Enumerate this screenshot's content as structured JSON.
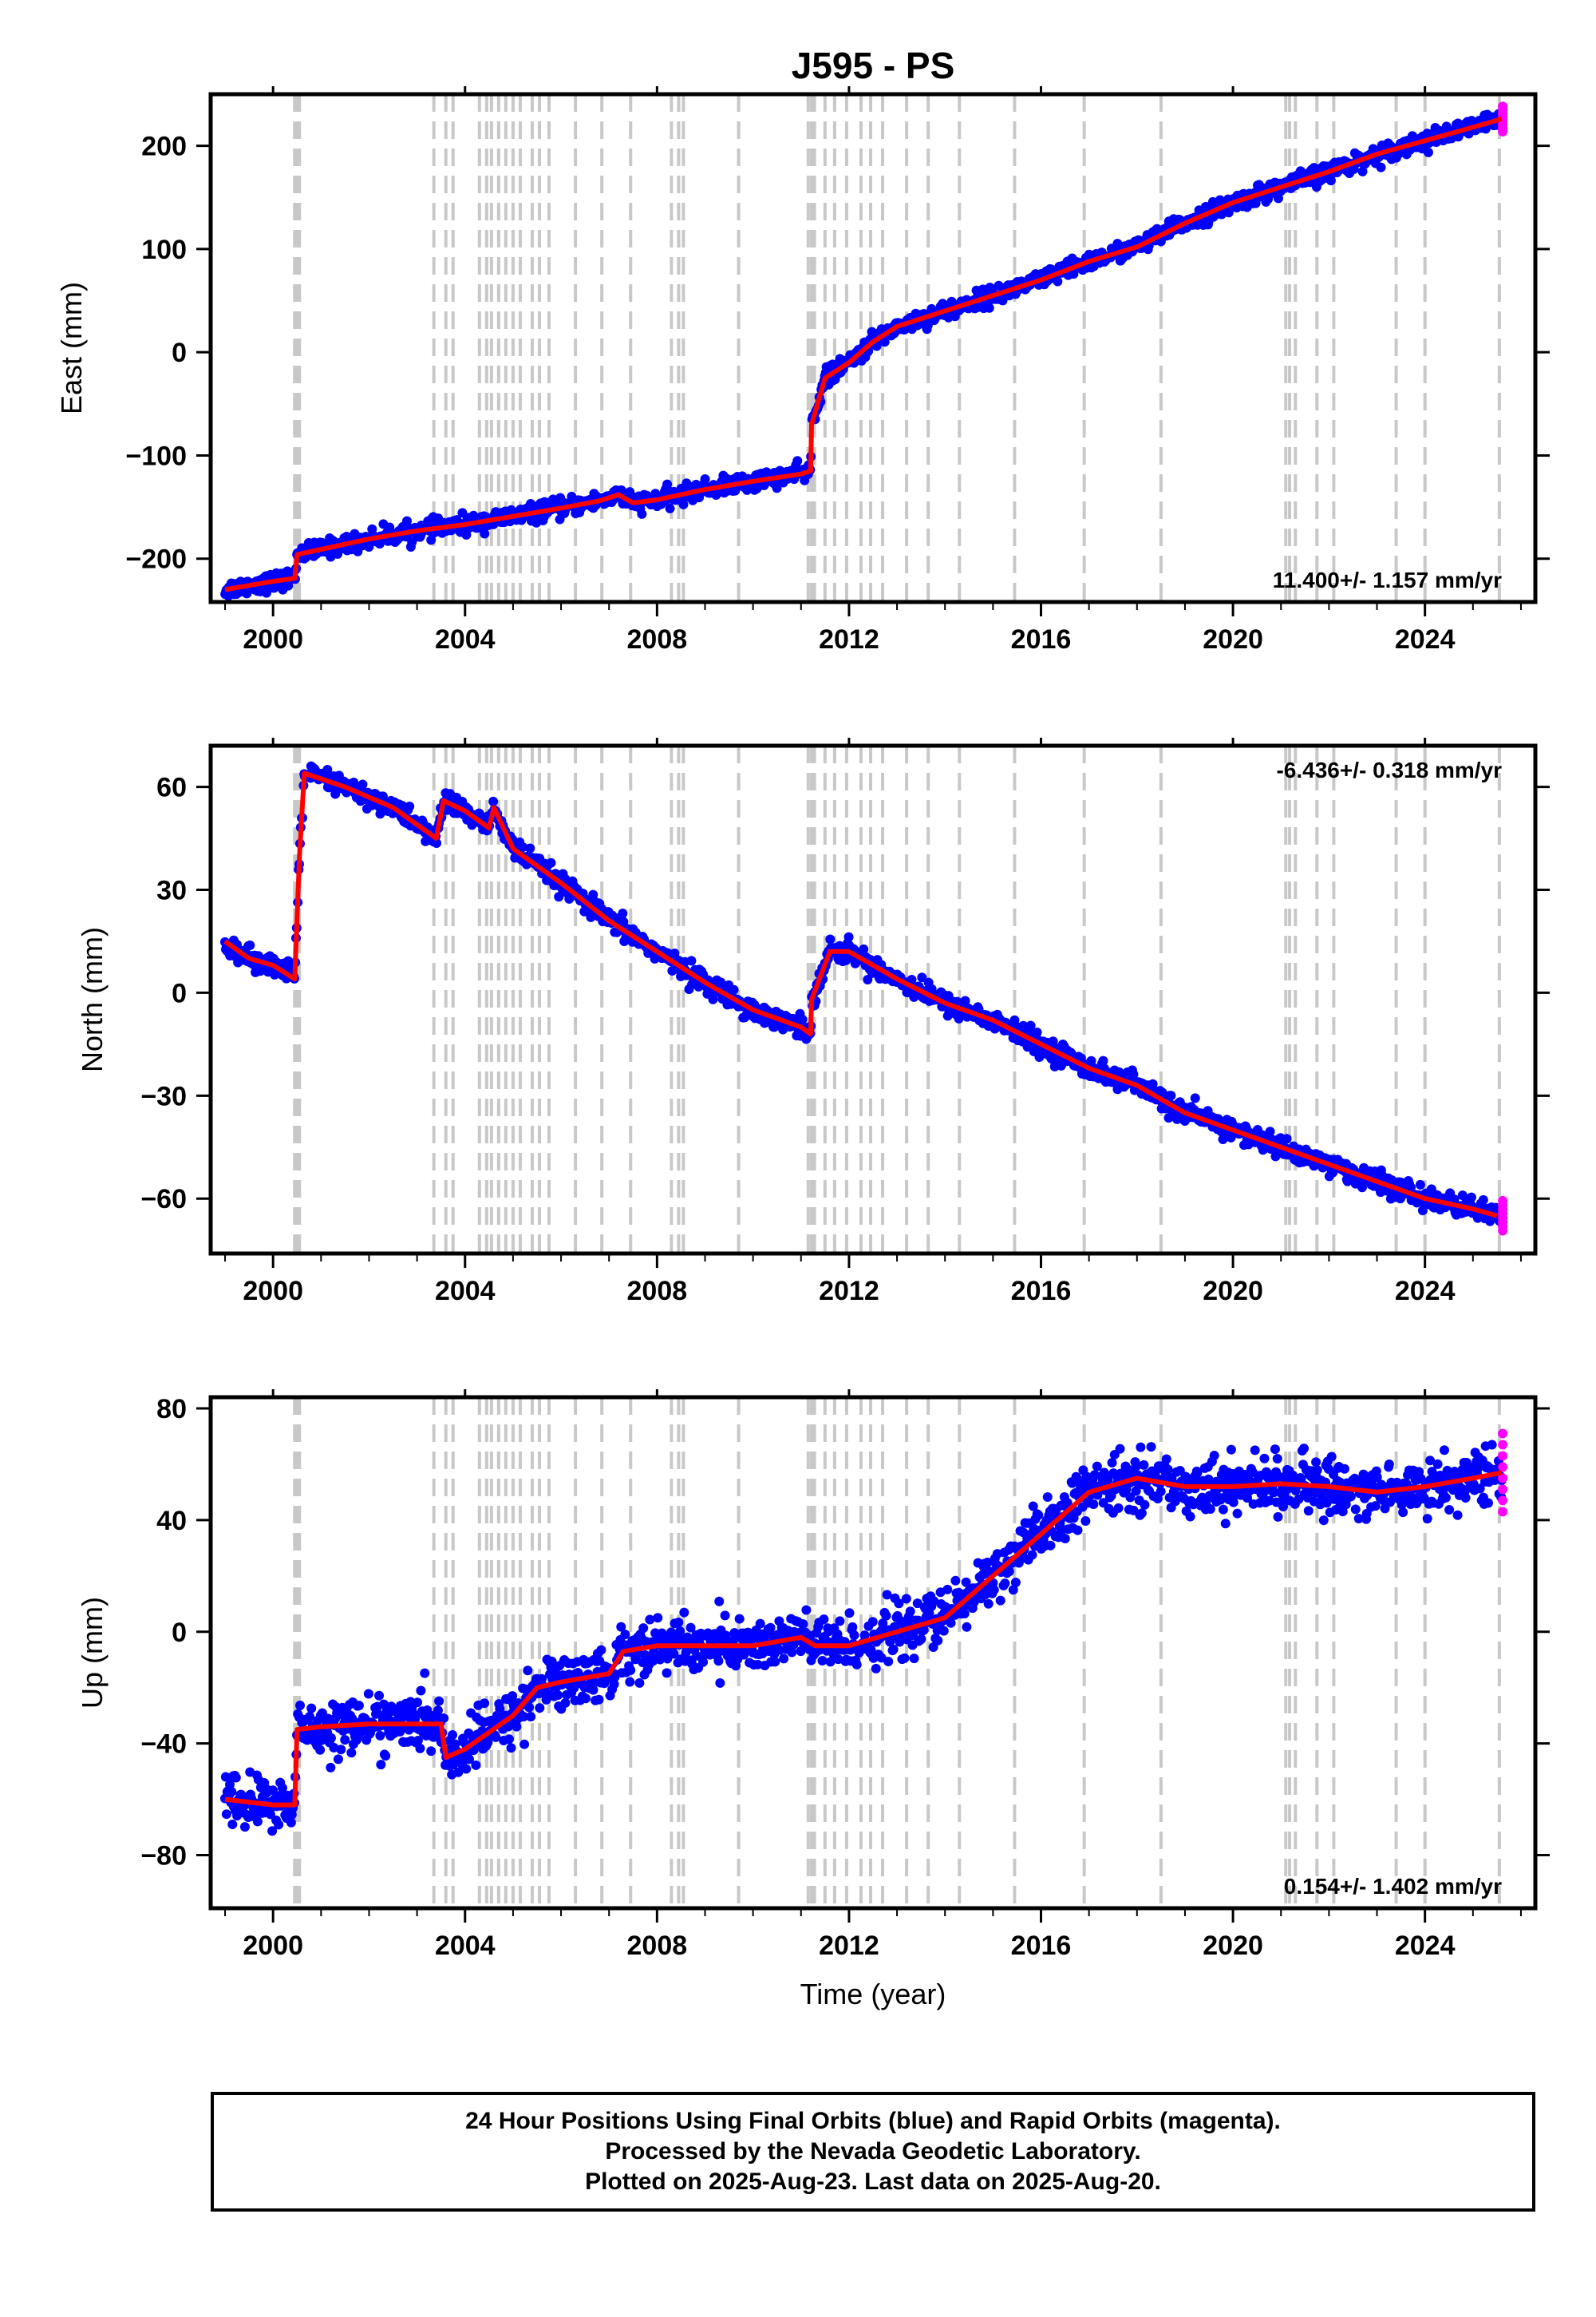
{
  "title": "J595 - PS",
  "xlabel": "Time (year)",
  "footer": {
    "line1": "24 Hour Positions Using Final Orbits (blue) and Rapid Orbits (magenta).",
    "line2": "Processed by the Nevada Geodetic Laboratory.",
    "line3": "Plotted on 2025-Aug-23. Last data on 2025-Aug-20."
  },
  "colors": {
    "final": "#0000ff",
    "rapid": "#ff00ff",
    "model": "#ff0000",
    "event_lines": "#c8c8c8",
    "frame": "#000000"
  },
  "chart_data": [
    {
      "type": "scatter",
      "component": "east",
      "ylabel": "East (mm)",
      "xlim": [
        1998.7,
        2026.3
      ],
      "ylim": [
        -242,
        250
      ],
      "yticks": [
        -200,
        -100,
        0,
        100,
        200
      ],
      "xticks": [
        2000,
        2004,
        2008,
        2012,
        2016,
        2020,
        2024
      ],
      "rate": "11.400+/- 1.157 mm/yr",
      "rate_position": "bottom-right",
      "series": [
        {
          "role": "model",
          "x": [
            1999.0,
            1999.5,
            2000.0,
            2000.45,
            2000.5,
            2001.0,
            2002.0,
            2003.0,
            2004.0,
            2005.0,
            2006.0,
            2006.8,
            2007.2,
            2007.5,
            2008.0,
            2009.0,
            2010.0,
            2011.0,
            2011.2,
            2011.22,
            2011.5,
            2012.0,
            2012.5,
            2013.0,
            2014.0,
            2015.0,
            2016.0,
            2017.0,
            2018.0,
            2019.0,
            2020.0,
            2021.0,
            2022.0,
            2023.0,
            2024.0,
            2025.0,
            2025.6
          ],
          "y": [
            -230,
            -226,
            -222,
            -219,
            -196,
            -191,
            -181,
            -173,
            -167,
            -159,
            -151,
            -144,
            -138,
            -146,
            -143,
            -133,
            -125,
            -118,
            -115,
            -70,
            -25,
            -10,
            10,
            25,
            40,
            55,
            70,
            88,
            102,
            125,
            145,
            160,
            175,
            192,
            205,
            218,
            226
          ]
        }
      ],
      "noise_mm": 7
    },
    {
      "type": "scatter",
      "component": "north",
      "ylabel": "North (mm)",
      "xlim": [
        1998.7,
        2026.3
      ],
      "ylim": [
        -76,
        72
      ],
      "yticks": [
        -60,
        -30,
        0,
        30,
        60
      ],
      "xticks": [
        2000,
        2004,
        2008,
        2012,
        2016,
        2020,
        2024
      ],
      "rate": "-6.436+/- 0.318 mm/yr",
      "rate_position": "top-right",
      "series": [
        {
          "role": "model",
          "x": [
            1999.0,
            1999.5,
            2000.0,
            2000.45,
            2000.55,
            2000.65,
            2001.5,
            2002.5,
            2003.3,
            2003.4,
            2003.55,
            2004.0,
            2004.5,
            2004.6,
            2005.0,
            2006.0,
            2007.0,
            2008.0,
            2009.0,
            2010.0,
            2011.0,
            2011.2,
            2011.22,
            2011.6,
            2012.0,
            2013.0,
            2014.0,
            2015.0,
            2016.0,
            2017.0,
            2018.0,
            2019.0,
            2020.0,
            2021.0,
            2022.0,
            2023.0,
            2024.0,
            2025.0,
            2025.5
          ],
          "y": [
            15,
            10,
            8,
            4,
            40,
            64,
            60,
            54,
            46,
            45,
            56,
            53,
            48,
            54,
            42,
            32,
            21,
            12,
            3,
            -5,
            -10,
            -12,
            -2,
            12,
            12,
            4,
            -3,
            -8,
            -15,
            -22,
            -27,
            -35,
            -40,
            -45,
            -50,
            -55,
            -60,
            -63,
            -65
          ]
        }
      ],
      "noise_mm": 2.5
    },
    {
      "type": "scatter",
      "component": "up",
      "ylabel": "Up (mm)",
      "xlim": [
        1998.7,
        2026.3
      ],
      "ylim": [
        -99,
        84
      ],
      "yticks": [
        -80,
        -40,
        0,
        40,
        80
      ],
      "xticks": [
        2000,
        2004,
        2008,
        2012,
        2016,
        2020,
        2024
      ],
      "rate": "0.154+/- 1.402 mm/yr",
      "rate_position": "bottom-right",
      "series": [
        {
          "role": "model",
          "x": [
            1999.0,
            1999.5,
            2000.0,
            2000.45,
            2000.5,
            2001.0,
            2002.0,
            2003.0,
            2003.5,
            2003.6,
            2004.0,
            2005.0,
            2005.5,
            2006.0,
            2007.0,
            2007.3,
            2008.0,
            2009.0,
            2010.0,
            2011.0,
            2011.3,
            2012.0,
            2013.0,
            2014.0,
            2015.0,
            2016.0,
            2017.0,
            2018.0,
            2019.0,
            2020.0,
            2021.0,
            2022.0,
            2023.0,
            2024.0,
            2025.0,
            2025.6
          ],
          "y": [
            -60,
            -61,
            -62,
            -62,
            -35,
            -34,
            -33,
            -33,
            -33,
            -45,
            -42,
            -30,
            -20,
            -18,
            -15,
            -7,
            -5,
            -5,
            -5,
            -2,
            -5,
            -5,
            0,
            5,
            20,
            35,
            50,
            55,
            52,
            52,
            53,
            52,
            50,
            52,
            55,
            57
          ]
        }
      ],
      "noise_mm": 8
    }
  ],
  "event_lines_years": [
    2000.45,
    2000.5,
    2000.55,
    2003.35,
    2003.6,
    2003.75,
    2004.3,
    2004.45,
    2004.55,
    2004.7,
    2004.85,
    2005.0,
    2005.15,
    2005.4,
    2005.55,
    2005.75,
    2006.3,
    2006.85,
    2007.45,
    2008.3,
    2008.45,
    2008.55,
    2009.7,
    2011.15,
    2011.22,
    2011.28,
    2011.5,
    2011.7,
    2011.95,
    2012.25,
    2012.45,
    2012.7,
    2013.2,
    2013.65,
    2014.3,
    2015.45,
    2016.9,
    2018.5,
    2021.1,
    2021.18,
    2021.3,
    2021.75,
    2022.1,
    2023.4,
    2024.0,
    2025.55
  ]
}
